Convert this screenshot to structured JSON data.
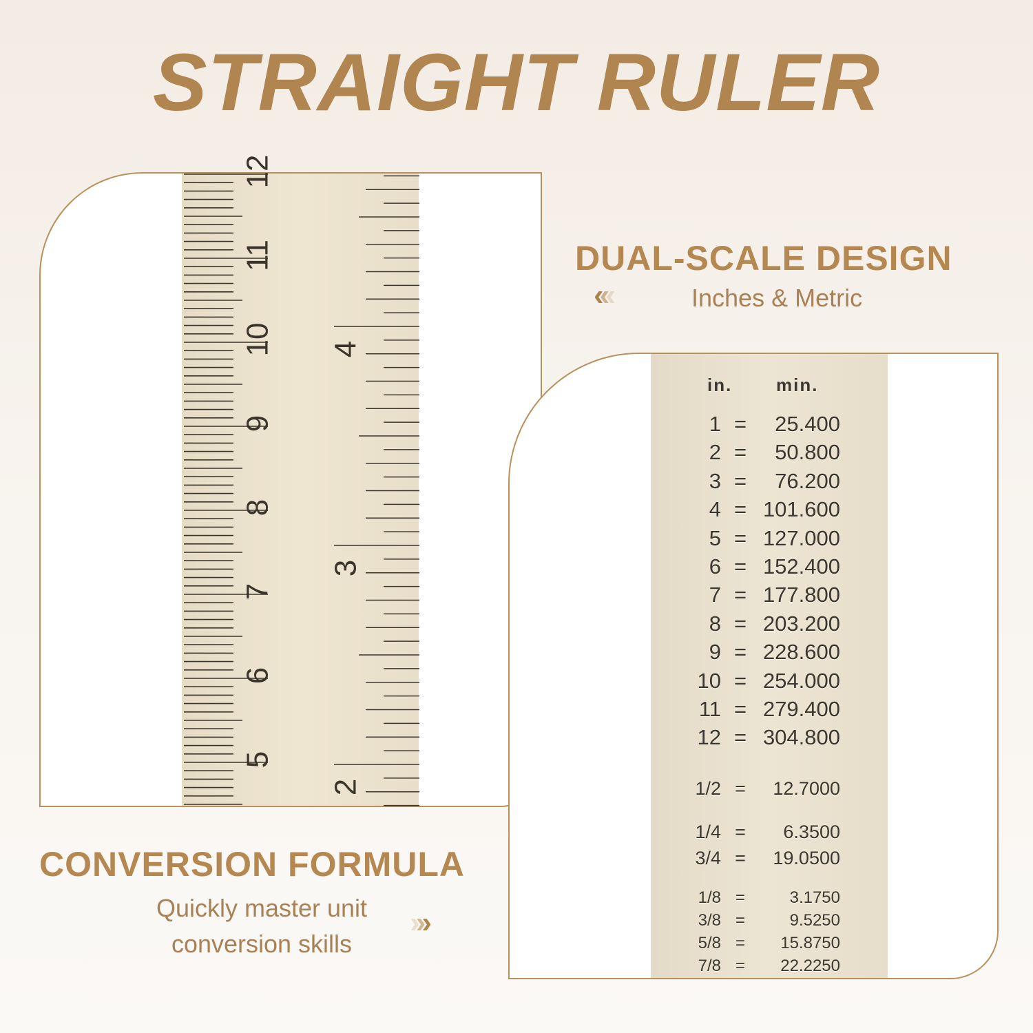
{
  "title": "STRAIGHT RULER",
  "dual_scale": {
    "heading": "DUAL-SCALE DESIGN",
    "subtitle": "Inches & Metric",
    "chevron_icon": "chevrons-left-icon"
  },
  "conversion": {
    "heading": "CONVERSION FORMULA",
    "subtitle_line1": "Quickly master unit",
    "subtitle_line2": "conversion skills",
    "chevron_icon": "chevrons-right-icon"
  },
  "colors": {
    "accent": "#b0854f",
    "ruler": "#ece1c9",
    "border": "#b8915c"
  },
  "ruler": {
    "cm_labels": [
      "5",
      "6",
      "7",
      "8",
      "9",
      "10",
      "11",
      "12"
    ],
    "inch_labels": [
      "2",
      "3",
      "4"
    ]
  },
  "table": {
    "header_in": "in.",
    "header_mm": "min.",
    "eq": "=",
    "whole": [
      {
        "in": "1",
        "mm": "25.400"
      },
      {
        "in": "2",
        "mm": "50.800"
      },
      {
        "in": "3",
        "mm": "76.200"
      },
      {
        "in": "4",
        "mm": "101.600"
      },
      {
        "in": "5",
        "mm": "127.000"
      },
      {
        "in": "6",
        "mm": "152.400"
      },
      {
        "in": "7",
        "mm": "177.800"
      },
      {
        "in": "8",
        "mm": "203.200"
      },
      {
        "in": "9",
        "mm": "228.600"
      },
      {
        "in": "10",
        "mm": "254.000"
      },
      {
        "in": "11",
        "mm": "279.400"
      },
      {
        "in": "12",
        "mm": "304.800"
      }
    ],
    "half": [
      {
        "in": "1/2",
        "mm": "12.7000"
      }
    ],
    "quarters": [
      {
        "in": "1/4",
        "mm": "6.3500"
      },
      {
        "in": "3/4",
        "mm": "19.0500"
      }
    ],
    "eighths": [
      {
        "in": "1/8",
        "mm": "3.1750"
      },
      {
        "in": "3/8",
        "mm": "9.5250"
      },
      {
        "in": "5/8",
        "mm": "15.8750"
      },
      {
        "in": "7/8",
        "mm": "22.2250"
      }
    ]
  }
}
